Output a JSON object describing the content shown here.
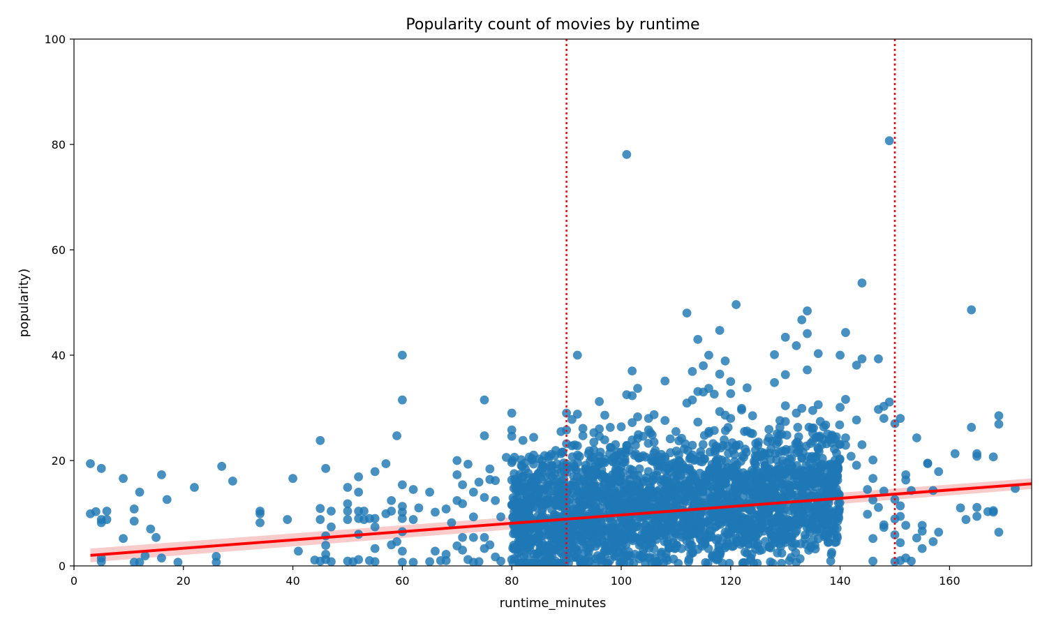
{
  "chart_data": {
    "type": "scatter",
    "title": "Popularity count of movies by runtime",
    "xlabel": "runtime_minutes",
    "ylabel": "popularity)",
    "xlim": [
      0,
      175
    ],
    "ylim": [
      0,
      100
    ],
    "xticks": [
      0,
      20,
      40,
      60,
      80,
      100,
      120,
      140,
      160
    ],
    "yticks": [
      0,
      20,
      40,
      60,
      80,
      100
    ],
    "grid": false,
    "colors": {
      "points": "#1f77b4",
      "regression": "#ff0000",
      "confidence_band": "#f4a0a0",
      "reference_lines": "#ff0000"
    },
    "regression_line": {
      "x": [
        3,
        175
      ],
      "y": [
        2.0,
        15.6
      ]
    },
    "confidence_band": {
      "x": [
        3,
        175
      ],
      "upper": [
        3.3,
        16.6
      ],
      "lower": [
        0.7,
        14.6
      ]
    },
    "reference_lines": [
      90,
      150
    ],
    "points": [
      [
        3,
        19.4
      ],
      [
        3,
        9.9
      ],
      [
        4,
        10.3
      ],
      [
        5,
        18.5
      ],
      [
        5,
        8.8
      ],
      [
        5,
        8.2
      ],
      [
        5,
        1.5
      ],
      [
        5,
        0.8
      ],
      [
        6,
        10.4
      ],
      [
        6,
        8.8
      ],
      [
        9,
        16.6
      ],
      [
        9,
        5.2
      ],
      [
        11,
        10.8
      ],
      [
        11,
        8.5
      ],
      [
        11,
        0.7
      ],
      [
        12,
        14.0
      ],
      [
        12,
        0.7
      ],
      [
        13,
        1.9
      ],
      [
        14,
        7.0
      ],
      [
        15,
        5.4
      ],
      [
        16,
        17.3
      ],
      [
        16,
        1.5
      ],
      [
        17,
        12.6
      ],
      [
        19,
        0.7
      ],
      [
        22,
        14.9
      ],
      [
        26,
        1.8
      ],
      [
        26,
        0.7
      ],
      [
        27,
        18.9
      ],
      [
        29,
        16.1
      ],
      [
        34,
        10.4
      ],
      [
        34,
        9.9
      ],
      [
        34,
        8.2
      ],
      [
        39,
        8.8
      ],
      [
        40,
        16.6
      ],
      [
        41,
        2.8
      ],
      [
        44,
        1.1
      ],
      [
        45,
        23.8
      ],
      [
        45,
        10.9
      ],
      [
        45,
        8.8
      ],
      [
        45,
        0.9
      ],
      [
        46,
        18.5
      ],
      [
        46,
        5.7
      ],
      [
        46,
        3.9
      ],
      [
        46,
        2.2
      ],
      [
        46,
        1.2
      ],
      [
        47,
        10.4
      ],
      [
        47,
        7.4
      ],
      [
        47,
        0.8
      ],
      [
        50,
        14.9
      ],
      [
        50,
        11.8
      ],
      [
        50,
        10.4
      ],
      [
        50,
        8.8
      ],
      [
        50,
        0.9
      ],
      [
        51,
        0.8
      ],
      [
        52,
        16.9
      ],
      [
        52,
        14.0
      ],
      [
        52,
        10.4
      ],
      [
        52,
        9.0
      ],
      [
        52,
        6.0
      ],
      [
        52,
        1.2
      ],
      [
        53,
        10.4
      ],
      [
        53,
        8.8
      ],
      [
        54,
        9.0
      ],
      [
        54,
        1.0
      ],
      [
        55,
        17.9
      ],
      [
        55,
        9.0
      ],
      [
        55,
        7.4
      ],
      [
        55,
        3.3
      ],
      [
        55,
        0.8
      ],
      [
        57,
        19.4
      ],
      [
        57,
        9.9
      ],
      [
        58,
        12.4
      ],
      [
        58,
        10.4
      ],
      [
        58,
        4.0
      ],
      [
        59,
        24.7
      ],
      [
        59,
        4.6
      ],
      [
        60,
        40.0
      ],
      [
        60,
        31.5
      ],
      [
        60,
        15.4
      ],
      [
        60,
        11.3
      ],
      [
        60,
        10.2
      ],
      [
        60,
        9.0
      ],
      [
        60,
        6.5
      ],
      [
        60,
        2.8
      ],
      [
        60,
        0.7
      ],
      [
        62,
        14.5
      ],
      [
        62,
        8.8
      ],
      [
        62,
        0.7
      ],
      [
        63,
        11.0
      ],
      [
        65,
        14.0
      ],
      [
        65,
        0.8
      ],
      [
        66,
        10.2
      ],
      [
        66,
        2.8
      ],
      [
        67,
        1.0
      ],
      [
        68,
        10.8
      ],
      [
        68,
        2.2
      ],
      [
        68,
        1.0
      ],
      [
        69,
        8.2
      ],
      [
        70,
        20.0
      ],
      [
        70,
        17.3
      ],
      [
        70,
        12.4
      ],
      [
        70,
        3.8
      ],
      [
        71,
        15.4
      ],
      [
        71,
        11.8
      ],
      [
        71,
        5.4
      ],
      [
        71,
        3.0
      ],
      [
        72,
        19.3
      ],
      [
        72,
        1.2
      ],
      [
        73,
        14.0
      ],
      [
        73,
        9.3
      ],
      [
        73,
        5.4
      ],
      [
        73,
        0.7
      ],
      [
        74,
        15.9
      ],
      [
        74,
        0.8
      ],
      [
        75,
        31.5
      ],
      [
        75,
        24.7
      ],
      [
        75,
        13.0
      ],
      [
        75,
        5.4
      ],
      [
        75,
        3.3
      ],
      [
        76,
        18.4
      ],
      [
        76,
        16.4
      ],
      [
        76,
        4.0
      ],
      [
        77,
        16.2
      ],
      [
        77,
        12.4
      ],
      [
        77,
        1.7
      ],
      [
        78,
        9.3
      ],
      [
        78,
        0.9
      ],
      [
        79,
        20.6
      ],
      [
        80,
        29.0
      ],
      [
        80,
        25.8
      ],
      [
        80,
        24.6
      ],
      [
        80,
        19.6
      ],
      [
        80,
        16.3
      ],
      [
        80,
        11.6
      ],
      [
        80,
        1.2
      ],
      [
        81,
        12.9
      ],
      [
        81,
        3.7
      ],
      [
        82,
        10.6
      ],
      [
        82,
        0.6
      ],
      [
        83,
        17.6
      ],
      [
        84,
        24.4
      ],
      [
        84,
        16.8
      ],
      [
        84,
        15.1
      ],
      [
        85,
        20.3
      ],
      [
        85,
        12.2
      ],
      [
        86,
        16.9
      ],
      [
        86,
        14.5
      ],
      [
        86,
        2.0
      ],
      [
        87,
        12.1
      ],
      [
        87,
        17.3
      ],
      [
        88,
        16.0
      ],
      [
        88,
        11.5
      ],
      [
        88,
        0.9
      ],
      [
        89,
        25.5
      ],
      [
        89,
        21.3
      ],
      [
        89,
        17.8
      ],
      [
        90,
        29.0
      ],
      [
        90,
        25.8
      ],
      [
        90,
        23.2
      ],
      [
        90,
        18.4
      ],
      [
        90,
        12.2
      ],
      [
        90,
        7.7
      ],
      [
        90,
        4.8
      ],
      [
        90,
        1.2
      ],
      [
        91,
        27.8
      ],
      [
        91,
        22.8
      ],
      [
        91,
        15.3
      ],
      [
        92,
        40.0
      ],
      [
        92,
        28.8
      ],
      [
        92,
        22.8
      ],
      [
        93,
        26.1
      ],
      [
        93,
        24.7
      ],
      [
        94,
        21.3
      ],
      [
        94,
        17.2
      ],
      [
        95,
        25.3
      ],
      [
        95,
        23.5
      ],
      [
        95,
        22.0
      ],
      [
        96,
        31.2
      ],
      [
        96,
        26.0
      ],
      [
        96,
        24.6
      ],
      [
        96,
        20.8
      ],
      [
        97,
        28.6
      ],
      [
        97,
        19.6
      ],
      [
        98,
        26.3
      ],
      [
        98,
        22.5
      ],
      [
        99,
        18.3
      ],
      [
        100,
        26.4
      ],
      [
        100,
        21.6
      ],
      [
        100,
        18.8
      ],
      [
        101,
        78.1
      ],
      [
        101,
        32.5
      ],
      [
        101,
        22.8
      ],
      [
        102,
        37.0
      ],
      [
        102,
        32.3
      ],
      [
        102,
        27.2
      ],
      [
        102,
        23.9
      ],
      [
        103,
        33.7
      ],
      [
        103,
        28.3
      ],
      [
        103,
        24.2
      ],
      [
        104,
        24.6
      ],
      [
        104,
        20.9
      ],
      [
        105,
        28.0
      ],
      [
        105,
        25.8
      ],
      [
        106,
        28.7
      ],
      [
        106,
        23.5
      ],
      [
        108,
        35.1
      ],
      [
        108,
        27.6
      ],
      [
        108,
        20.7
      ],
      [
        109,
        21.5
      ],
      [
        110,
        25.5
      ],
      [
        112,
        48.0
      ],
      [
        112,
        30.9
      ],
      [
        113,
        36.9
      ],
      [
        113,
        31.5
      ],
      [
        113,
        22.9
      ],
      [
        114,
        43.0
      ],
      [
        114,
        33.1
      ],
      [
        114,
        27.3
      ],
      [
        115,
        38.0
      ],
      [
        115,
        33.0
      ],
      [
        116,
        40.0
      ],
      [
        116,
        33.7
      ],
      [
        116,
        25.2
      ],
      [
        117,
        32.6
      ],
      [
        117,
        25.7
      ],
      [
        118,
        44.7
      ],
      [
        118,
        36.4
      ],
      [
        118,
        29.3
      ],
      [
        119,
        38.9
      ],
      [
        119,
        28.6
      ],
      [
        120,
        35.0
      ],
      [
        120,
        32.7
      ],
      [
        120,
        28.0
      ],
      [
        121,
        49.6
      ],
      [
        121,
        22.9
      ],
      [
        122,
        29.9
      ],
      [
        122,
        29.6
      ],
      [
        123,
        33.8
      ],
      [
        123,
        25.6
      ],
      [
        124,
        25.1
      ],
      [
        124,
        28.5
      ],
      [
        127,
        25.9
      ],
      [
        127,
        24.3
      ],
      [
        128,
        40.1
      ],
      [
        128,
        34.8
      ],
      [
        129,
        27.6
      ],
      [
        129,
        26.3
      ],
      [
        130,
        43.4
      ],
      [
        130,
        36.3
      ],
      [
        130,
        30.4
      ],
      [
        130,
        27.4
      ],
      [
        132,
        29.0
      ],
      [
        132,
        41.8
      ],
      [
        133,
        46.7
      ],
      [
        133,
        29.9
      ],
      [
        133,
        20.4
      ],
      [
        134,
        48.4
      ],
      [
        134,
        44.1
      ],
      [
        134,
        37.2
      ],
      [
        135,
        29.5
      ],
      [
        135,
        25.2
      ],
      [
        136,
        40.3
      ],
      [
        136,
        30.6
      ],
      [
        136,
        24.5
      ],
      [
        137,
        26.4
      ],
      [
        137,
        24.0
      ],
      [
        138,
        24.0
      ],
      [
        139,
        24.1
      ],
      [
        140,
        40.0
      ],
      [
        140,
        30.1
      ],
      [
        140,
        23.1
      ],
      [
        141,
        44.3
      ],
      [
        141,
        31.6
      ],
      [
        141,
        24.3
      ],
      [
        141,
        22.9
      ],
      [
        142,
        20.8
      ],
      [
        143,
        38.1
      ],
      [
        143,
        27.7
      ],
      [
        143,
        19.1
      ],
      [
        144,
        53.7
      ],
      [
        144,
        39.3
      ],
      [
        144,
        23.0
      ],
      [
        145,
        14.5
      ],
      [
        145,
        9.8
      ],
      [
        146,
        20.1
      ],
      [
        146,
        16.6
      ],
      [
        146,
        12.5
      ],
      [
        146,
        5.2
      ],
      [
        146,
        0.9
      ],
      [
        147,
        39.3
      ],
      [
        147,
        29.7
      ],
      [
        147,
        11.1
      ],
      [
        148,
        30.3
      ],
      [
        148,
        28.0
      ],
      [
        148,
        14.2
      ],
      [
        148,
        7.8
      ],
      [
        148,
        7.3
      ],
      [
        149,
        80.7
      ],
      [
        149,
        31.1
      ],
      [
        150,
        27.0
      ],
      [
        150,
        12.6
      ],
      [
        150,
        8.9
      ],
      [
        150,
        5.9
      ],
      [
        150,
        0.8
      ],
      [
        151,
        28.0
      ],
      [
        151,
        11.4
      ],
      [
        151,
        9.4
      ],
      [
        151,
        4.4
      ],
      [
        151,
        1.0
      ],
      [
        152,
        17.3
      ],
      [
        152,
        16.3
      ],
      [
        152,
        7.7
      ],
      [
        152,
        1.5
      ],
      [
        153,
        14.3
      ],
      [
        153,
        0.9
      ],
      [
        154,
        24.3
      ],
      [
        154,
        5.3
      ],
      [
        155,
        7.7
      ],
      [
        155,
        6.6
      ],
      [
        155,
        3.3
      ],
      [
        156,
        19.5
      ],
      [
        156,
        19.4
      ],
      [
        157,
        14.3
      ],
      [
        157,
        4.6
      ],
      [
        158,
        17.9
      ],
      [
        158,
        6.4
      ],
      [
        161,
        21.3
      ],
      [
        162,
        11.0
      ],
      [
        163,
        8.8
      ],
      [
        164,
        48.6
      ],
      [
        164,
        26.3
      ],
      [
        165,
        21.3
      ],
      [
        165,
        20.8
      ],
      [
        165,
        11.1
      ],
      [
        165,
        9.4
      ],
      [
        167,
        10.3
      ],
      [
        168,
        20.7
      ],
      [
        168,
        10.5
      ],
      [
        168,
        10.2
      ],
      [
        169,
        28.5
      ],
      [
        169,
        26.9
      ],
      [
        169,
        6.4
      ],
      [
        172,
        14.7
      ]
    ],
    "dense_region": {
      "x_range": [
        80,
        140
      ],
      "y_center": [
        8,
        12
      ],
      "description_only_for_generation": false
    }
  }
}
